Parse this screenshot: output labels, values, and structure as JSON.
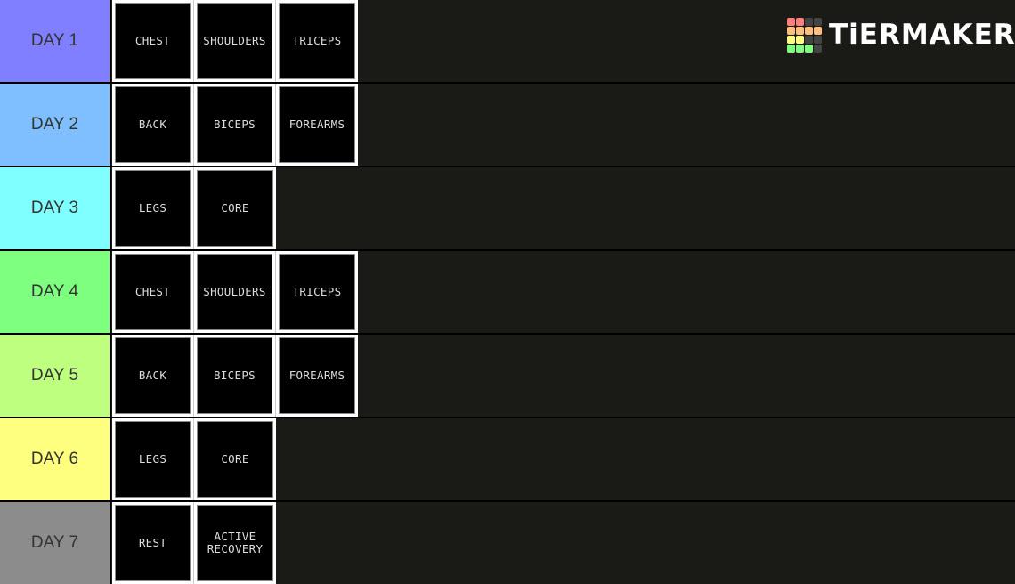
{
  "brand": {
    "name": "TiERMAKER",
    "grid_colors": [
      "#ff7f7f",
      "#ff7f7f",
      "#444444",
      "#444444",
      "#ffbf7f",
      "#ffbf7f",
      "#ffbf7f",
      "#ffbf7f",
      "#ffff7f",
      "#ffff7f",
      "#444444",
      "#444444",
      "#7fff7f",
      "#7fff7f",
      "#7fff7f",
      "#444444"
    ]
  },
  "background": "#1a1a17",
  "tiers": [
    {
      "label": "DAY 1",
      "color": "#7f7fff",
      "items": [
        "CHEST",
        "SHOULDERS",
        "TRICEPS"
      ]
    },
    {
      "label": "DAY 2",
      "color": "#7fbfff",
      "items": [
        "BACK",
        "BICEPS",
        "FOREARMS"
      ]
    },
    {
      "label": "DAY 3",
      "color": "#7fffff",
      "items": [
        "LEGS",
        "CORE"
      ]
    },
    {
      "label": "DAY 4",
      "color": "#7fff7f",
      "items": [
        "CHEST",
        "SHOULDERS",
        "TRICEPS"
      ]
    },
    {
      "label": "DAY 5",
      "color": "#bfff7f",
      "items": [
        "BACK",
        "BICEPS",
        "FOREARMS"
      ]
    },
    {
      "label": "DAY 6",
      "color": "#ffff7f",
      "items": [
        "LEGS",
        "CORE"
      ]
    },
    {
      "label": "DAY 7",
      "color": "#8c8c8c",
      "items": [
        "REST",
        "ACTIVE\nRECOVERY"
      ]
    }
  ]
}
